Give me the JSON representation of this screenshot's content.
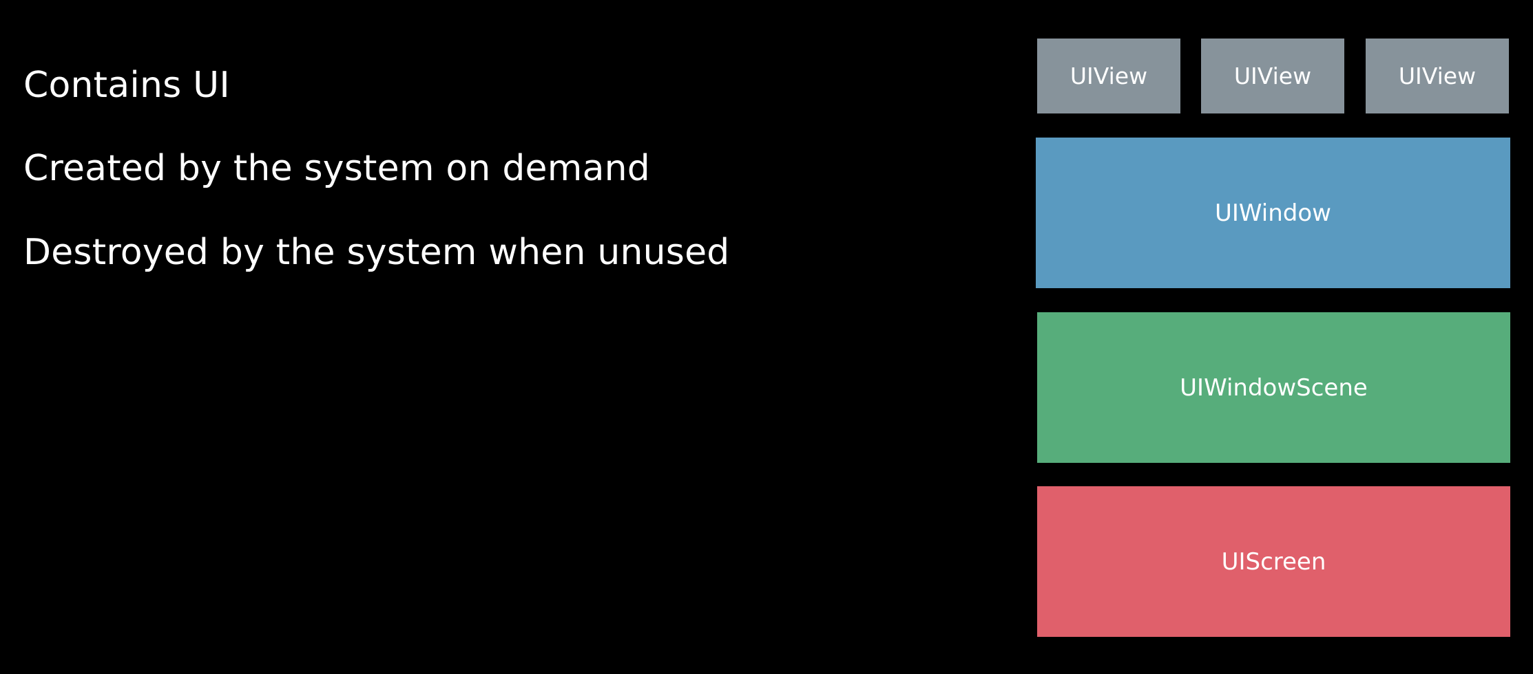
{
  "bullets": [
    "Contains UI",
    "Created by the system on demand",
    "Destroyed by the system when unused"
  ],
  "diagram": {
    "views": [
      "UIView",
      "UIView",
      "UIView"
    ],
    "window": "UIWindow",
    "window_scene": "UIWindowScene",
    "screen": "UIScreen"
  },
  "colors": {
    "background": "#000000",
    "text": "#ffffff",
    "view": "#87939b",
    "window": "#5a9ac0",
    "window_scene": "#57ad7b",
    "screen": "#e0606b"
  }
}
